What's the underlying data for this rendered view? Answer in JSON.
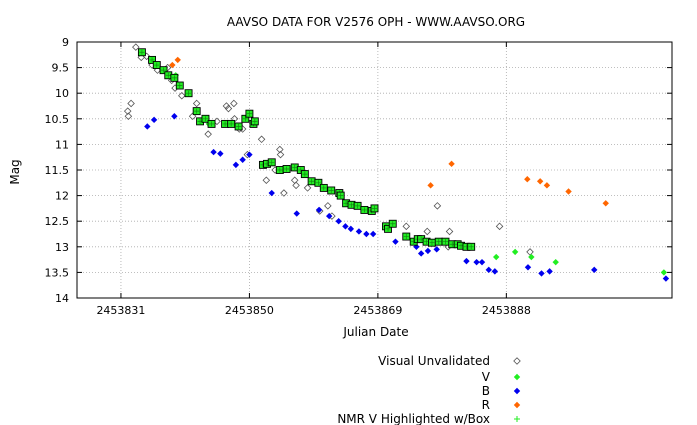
{
  "chart_data": {
    "type": "scatter",
    "title": "AAVSO DATA FOR V2576 OPH - WWW.AAVSO.ORG",
    "xlabel": "Julian Date",
    "ylabel": "Mag",
    "xlim": [
      2453824.5,
      2453912.5
    ],
    "ylim": [
      14,
      9
    ],
    "y_inverted": true,
    "grid": "dotted",
    "xticks": [
      2453831,
      2453850,
      2453869,
      2453888
    ],
    "yticks": [
      9,
      9.5,
      10,
      10.5,
      11,
      11.5,
      12,
      12.5,
      13,
      13.5,
      14
    ],
    "ytick_labels": [
      "9",
      "9.5",
      "10",
      "10.5",
      "11",
      "11.5",
      "12",
      "12.5",
      "13",
      "13.5",
      "14"
    ],
    "legend_position": "bottom-right",
    "series": [
      {
        "name": "Visual Unvalidated",
        "marker": "diamond-open",
        "color": "#000000",
        "points": [
          [
            2453832.0,
            10.35
          ],
          [
            2453832.1,
            10.45
          ],
          [
            2453832.5,
            10.2
          ],
          [
            2453833.2,
            9.1
          ],
          [
            2453834.0,
            9.3
          ],
          [
            2453834.8,
            9.28
          ],
          [
            2453835.6,
            9.45
          ],
          [
            2453836.4,
            9.55
          ],
          [
            2453837.2,
            9.55
          ],
          [
            2453837.9,
            9.5
          ],
          [
            2453838.5,
            9.75
          ],
          [
            2453839.0,
            9.9
          ],
          [
            2453840.0,
            10.05
          ],
          [
            2453841.6,
            10.45
          ],
          [
            2453842.2,
            10.2
          ],
          [
            2453843.9,
            10.8
          ],
          [
            2453845.2,
            10.55
          ],
          [
            2453846.6,
            10.25
          ],
          [
            2453846.9,
            10.3
          ],
          [
            2453847.7,
            10.2
          ],
          [
            2453847.8,
            10.5
          ],
          [
            2453848.2,
            10.65
          ],
          [
            2453848.5,
            10.7
          ],
          [
            2453849.0,
            10.7
          ],
          [
            2453849.7,
            11.2
          ],
          [
            2453851.8,
            10.9
          ],
          [
            2453852.5,
            11.7
          ],
          [
            2453853.8,
            11.5
          ],
          [
            2453854.5,
            11.1
          ],
          [
            2453854.6,
            11.2
          ],
          [
            2453855.1,
            11.95
          ],
          [
            2453856.7,
            11.7
          ],
          [
            2453856.9,
            11.8
          ],
          [
            2453858.6,
            11.85
          ],
          [
            2453860.4,
            12.3
          ],
          [
            2453861.6,
            12.2
          ],
          [
            2453862.2,
            12.4
          ],
          [
            2453870.5,
            12.6
          ],
          [
            2453873.2,
            12.6
          ],
          [
            2453876.3,
            12.7
          ],
          [
            2453877.8,
            12.2
          ],
          [
            2453879.4,
            13.0
          ],
          [
            2453879.6,
            12.7
          ],
          [
            2453887.0,
            12.6
          ],
          [
            2453891.5,
            13.1
          ]
        ]
      },
      {
        "name": "V",
        "marker": "diamond-filled",
        "color": "#22ee22",
        "points": [
          [
            2453834.1,
            9.2
          ],
          [
            2453839.1,
            9.65
          ],
          [
            2453844.0,
            10.6
          ],
          [
            2453886.5,
            13.2
          ],
          [
            2453889.3,
            13.1
          ],
          [
            2453891.7,
            13.2
          ],
          [
            2453895.3,
            13.3
          ],
          [
            2453911.3,
            13.5
          ]
        ]
      },
      {
        "name": "B",
        "marker": "diamond-filled",
        "color": "#0000ee",
        "points": [
          [
            2453834.9,
            10.65
          ],
          [
            2453835.9,
            10.52
          ],
          [
            2453838.9,
            10.45
          ],
          [
            2453844.7,
            11.15
          ],
          [
            2453845.7,
            11.18
          ],
          [
            2453848.0,
            11.4
          ],
          [
            2453849.0,
            11.3
          ],
          [
            2453850.0,
            11.2
          ],
          [
            2453853.3,
            11.95
          ],
          [
            2453857.0,
            12.35
          ],
          [
            2453860.3,
            12.28
          ],
          [
            2453861.8,
            12.4
          ],
          [
            2453863.2,
            12.5
          ],
          [
            2453864.2,
            12.6
          ],
          [
            2453865.0,
            12.65
          ],
          [
            2453866.2,
            12.7
          ],
          [
            2453867.3,
            12.75
          ],
          [
            2453868.3,
            12.75
          ],
          [
            2453871.6,
            12.9
          ],
          [
            2453874.7,
            13.0
          ],
          [
            2453875.4,
            13.13
          ],
          [
            2453876.4,
            13.08
          ],
          [
            2453877.7,
            13.05
          ],
          [
            2453882.1,
            13.28
          ],
          [
            2453883.6,
            13.3
          ],
          [
            2453884.4,
            13.3
          ],
          [
            2453885.4,
            13.45
          ],
          [
            2453886.3,
            13.48
          ],
          [
            2453891.2,
            13.4
          ],
          [
            2453893.2,
            13.52
          ],
          [
            2453894.4,
            13.48
          ],
          [
            2453901.0,
            13.45
          ],
          [
            2453911.6,
            13.62
          ]
        ]
      },
      {
        "name": "R",
        "marker": "diamond-filled",
        "color": "#ff6600",
        "points": [
          [
            2453838.6,
            9.45
          ],
          [
            2453839.4,
            9.35
          ],
          [
            2453876.8,
            11.8
          ],
          [
            2453879.9,
            11.38
          ],
          [
            2453891.1,
            11.68
          ],
          [
            2453893.0,
            11.72
          ],
          [
            2453894.0,
            11.8
          ],
          [
            2453897.2,
            11.92
          ],
          [
            2453902.7,
            12.15
          ]
        ]
      },
      {
        "name": "NMR V Highlighted w/Box",
        "marker": "plus-boxed",
        "color": "#22ee22",
        "points": [
          [
            2453834.1,
            9.2
          ],
          [
            2453835.6,
            9.35
          ],
          [
            2453836.3,
            9.45
          ],
          [
            2453837.3,
            9.55
          ],
          [
            2453838.0,
            9.65
          ],
          [
            2453838.9,
            9.7
          ],
          [
            2453839.7,
            9.85
          ],
          [
            2453841.0,
            10.0
          ],
          [
            2453842.2,
            10.35
          ],
          [
            2453842.7,
            10.55
          ],
          [
            2453843.5,
            10.5
          ],
          [
            2453844.4,
            10.6
          ],
          [
            2453846.4,
            10.6
          ],
          [
            2453847.3,
            10.6
          ],
          [
            2453848.4,
            10.65
          ],
          [
            2453849.4,
            10.5
          ],
          [
            2453850.0,
            10.4
          ],
          [
            2453850.6,
            10.6
          ],
          [
            2453850.8,
            10.55
          ],
          [
            2453852.0,
            11.4
          ],
          [
            2453852.6,
            11.38
          ],
          [
            2453853.3,
            11.35
          ],
          [
            2453854.5,
            11.5
          ],
          [
            2453855.5,
            11.48
          ],
          [
            2453856.7,
            11.45
          ],
          [
            2453857.6,
            11.5
          ],
          [
            2453858.2,
            11.58
          ],
          [
            2453859.2,
            11.72
          ],
          [
            2453860.2,
            11.75
          ],
          [
            2453861.0,
            11.85
          ],
          [
            2453862.1,
            11.9
          ],
          [
            2453863.3,
            11.95
          ],
          [
            2453863.5,
            12.0
          ],
          [
            2453864.3,
            12.15
          ],
          [
            2453865.1,
            12.18
          ],
          [
            2453866.0,
            12.2
          ],
          [
            2453867.0,
            12.28
          ],
          [
            2453868.1,
            12.3
          ],
          [
            2453868.5,
            12.25
          ],
          [
            2453870.2,
            12.6
          ],
          [
            2453870.5,
            12.65
          ],
          [
            2453871.2,
            12.55
          ],
          [
            2453873.2,
            12.8
          ],
          [
            2453874.3,
            12.9
          ],
          [
            2453874.9,
            12.85
          ],
          [
            2453875.4,
            12.85
          ],
          [
            2453876.2,
            12.9
          ],
          [
            2453877.0,
            12.92
          ],
          [
            2453878.0,
            12.9
          ],
          [
            2453879.0,
            12.9
          ],
          [
            2453880.0,
            12.95
          ],
          [
            2453880.8,
            12.95
          ],
          [
            2453881.3,
            12.98
          ],
          [
            2453882.1,
            13.0
          ],
          [
            2453882.8,
            13.0
          ]
        ]
      }
    ]
  }
}
